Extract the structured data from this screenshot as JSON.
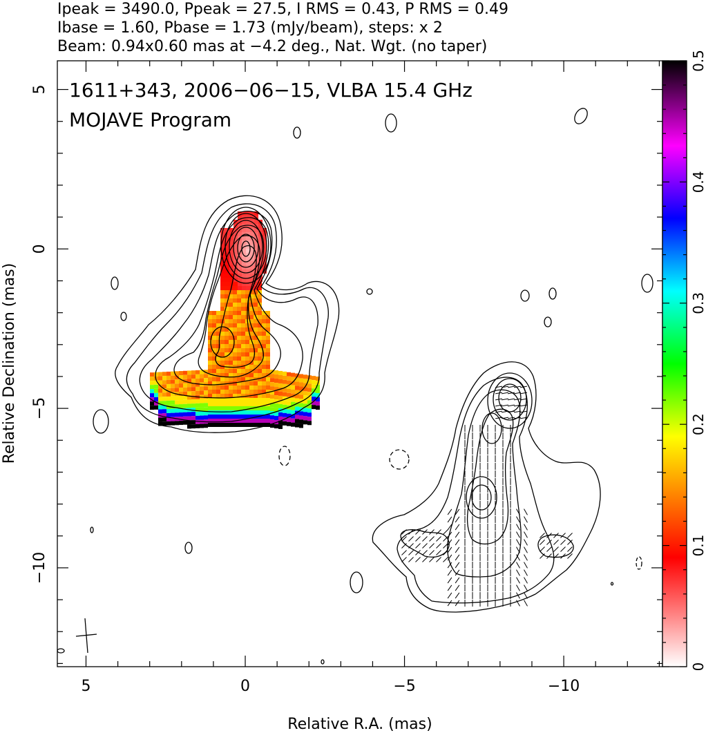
{
  "header": {
    "line1": "Ipeak = 3490.0, Ppeak = 27.5, I RMS = 0.43, P RMS = 0.49",
    "line2": "Ibase = 1.60, Pbase = 1.73 (mJy/beam), steps: x 2",
    "line3": "Beam: 0.94x0.60 mas at −4.2 deg., Nat. Wgt. (no taper)"
  },
  "annotations": {
    "title": "1611+343, 2006−06−15, VLBA 15.4 GHz",
    "program": "MOJAVE Program"
  },
  "chart_data": [
    {
      "type": "heatmap",
      "panel": "left",
      "description_source": "total intensity contours with fractional polarization color map",
      "xlabel": "Relative R.A. (mas)",
      "ylabel": "Relative Declination (mas)",
      "xlim": [
        5.9,
        -13.1
      ],
      "ylim": [
        -13.1,
        5.9
      ],
      "x_ticks": [
        5,
        0,
        -5,
        -10
      ],
      "x_tick_labels": [
        "5",
        "0",
        "−5",
        "−10"
      ],
      "y_ticks": [
        5,
        0,
        -5,
        -10
      ],
      "y_tick_labels": [
        "5",
        "0",
        "−5",
        "−10"
      ],
      "ipeak_mJy": 3490.0,
      "ppeak_mJy": 27.5,
      "i_rms": 0.43,
      "p_rms": 0.49,
      "ibase": 1.6,
      "pbase": 1.73,
      "contour_step": "x 2",
      "beam": {
        "major_mas": 0.94,
        "minor_mas": 0.6,
        "pa_deg": -4.2
      },
      "core_position": [
        0,
        0
      ],
      "secondary_peak": [
        0.8,
        -3.0
      ]
    },
    {
      "type": "heatmap",
      "panel": "colorbar",
      "colorbar_range": [
        0,
        0.5
      ],
      "colorbar_ticks": [
        0,
        0.1,
        0.2,
        0.3,
        0.4,
        0.5
      ],
      "colorbar_tick_labels": [
        "0",
        "0.1",
        "0.2",
        "0.3",
        "0.4",
        "0.5"
      ],
      "colormap_stops": [
        {
          "v": 0.0,
          "color": "#ffffff"
        },
        {
          "v": 0.05,
          "color": "#ff6f6f"
        },
        {
          "v": 0.09,
          "color": "#ff0000"
        },
        {
          "v": 0.14,
          "color": "#ff8000"
        },
        {
          "v": 0.19,
          "color": "#ffff00"
        },
        {
          "v": 0.25,
          "color": "#00ff00"
        },
        {
          "v": 0.31,
          "color": "#00ffff"
        },
        {
          "v": 0.37,
          "color": "#0000ff"
        },
        {
          "v": 0.43,
          "color": "#ff00ff"
        },
        {
          "v": 0.5,
          "color": "#000000"
        }
      ]
    }
  ]
}
